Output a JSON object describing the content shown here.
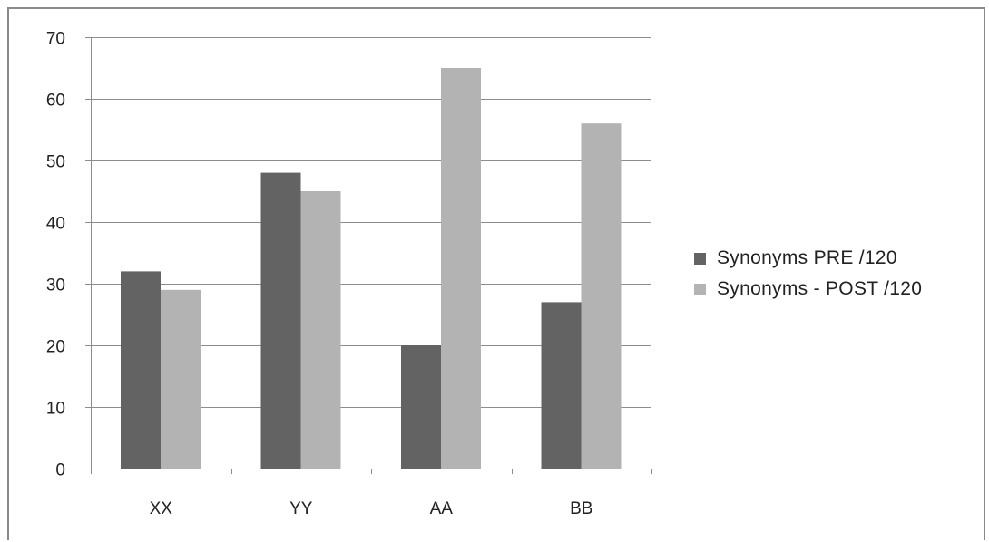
{
  "chart_data": {
    "type": "bar",
    "categories": [
      "XX",
      "YY",
      "AA",
      "BB"
    ],
    "series": [
      {
        "name": "Synonyms PRE /120",
        "values": [
          32,
          48,
          20,
          27
        ],
        "color": "#636363"
      },
      {
        "name": "Synonyms - POST /120",
        "values": [
          29,
          45,
          65,
          56
        ],
        "color": "#b3b3b3"
      }
    ],
    "ylim": [
      0,
      70
    ],
    "yticks": [
      "0",
      "10",
      "20",
      "30",
      "40",
      "50",
      "60",
      "70"
    ],
    "grid": true,
    "legend_position": "right"
  },
  "colors": {
    "gridline": "#8c8c8c",
    "axis": "#8c8c8c"
  }
}
